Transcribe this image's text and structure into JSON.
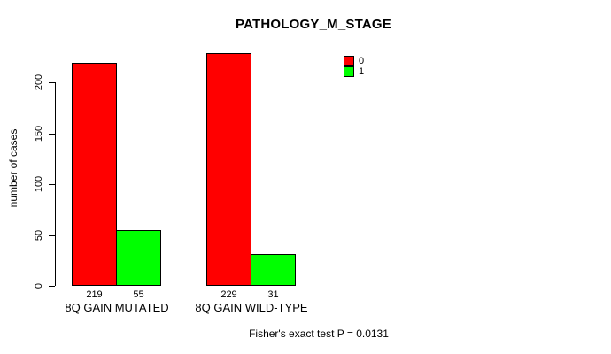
{
  "chart_data": {
    "type": "bar",
    "title": "PATHOLOGY_M_STAGE",
    "ylabel": "number of cases",
    "xlabel": "",
    "categories": [
      "8Q GAIN MUTATED",
      "8Q GAIN WILD-TYPE"
    ],
    "series": [
      {
        "name": "0",
        "color": "#FF0000",
        "values": [
          219,
          229
        ]
      },
      {
        "name": "1",
        "color": "#00FF00",
        "values": [
          55,
          31
        ]
      }
    ],
    "yticks": [
      0,
      50,
      100,
      150,
      200
    ],
    "ylim": [
      0,
      229
    ],
    "grid": false,
    "legend_position": "top-right",
    "annotation": "Fisher's exact test P = 0.0131"
  }
}
